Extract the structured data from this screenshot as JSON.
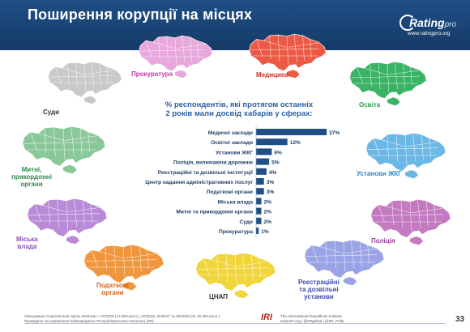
{
  "header": {
    "title": "Поширення корупції на місцях"
  },
  "logo": {
    "name": "Rating",
    "suffix": "pro",
    "url": "www.ratingpro.org"
  },
  "maps": [
    {
      "label": "Суди",
      "color": "#c9c9c9"
    },
    {
      "label": "Прокуратура",
      "color": "#e8a8dc"
    },
    {
      "label": "Медицина",
      "color": "#ec5a46"
    },
    {
      "label": "Освіта",
      "color": "#3ab464"
    },
    {
      "label": "Митні,\nприкордонні\nоргани",
      "color": "#8ac89a"
    },
    {
      "label": "Установи ЖКГ",
      "color": "#6bb8e6"
    },
    {
      "label": "Міська\nвлада",
      "color": "#b98ad8"
    },
    {
      "label": "Поліція",
      "color": "#c37ac0"
    },
    {
      "label": "Податкові\nоргани",
      "color": "#f0963c"
    },
    {
      "label": "ЦНАП",
      "color": "#f0d63a"
    },
    {
      "label": "Реєстраційні\nта дозвільні\nустанови",
      "color": "#9aa3e6"
    }
  ],
  "chart_data": {
    "type": "bar",
    "orientation": "horizontal",
    "title": "% респондентів, які протягом останніх 2 років мали досвід хабарів у сферах:",
    "categories": [
      "Медичні заклади",
      "Освітні заклади",
      "Установи ЖКГ",
      "Поліція, включаючи дорожню",
      "Реєстраційні та дозвільні інституції",
      "Центр надання адміністративних послуг",
      "Податкові органи",
      "Міська влада",
      "Митні та прикордонні органи",
      "Суди",
      "Прокуратура"
    ],
    "values": [
      27,
      12,
      6,
      5,
      4,
      3,
      3,
      2,
      2,
      2,
      1
    ],
    "value_labels": [
      "27%",
      "12%",
      "6%",
      "5%",
      "4%",
      "3%",
      "3%",
      "2%",
      "2%",
      "2%",
      "1%"
    ],
    "xlim": [
      0,
      30
    ],
    "grid": false,
    "bar_color": "#1f4f86"
  },
  "footer": {
    "left_line1": "Опитування Соціологічної групи «Рейтинг»: 07/2015 (17,600 респ.), 07/2016, 02/2017 та 02/2018 (по 19,200 респ.).",
    "left_line2": "Проведено на замовлення Міжнародного Республіканського Інституту (IRI)",
    "iri": "IRI",
    "right_line1": "The International Republican Institute",
    "right_line2": "www.IRI.org | @IRIglobal | @IRI_Polls",
    "page": "33"
  }
}
